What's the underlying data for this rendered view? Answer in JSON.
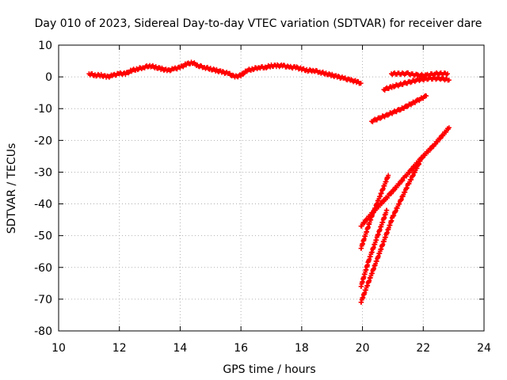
{
  "chart_data": {
    "type": "scatter",
    "title": "Day 010 of 2023, Sidereal Day-to-day VTEC variation (SDTVAR) for receiver dare",
    "xlabel": "GPS time / hours",
    "ylabel": "SDTVAR / TECUs",
    "xlim": [
      10,
      24
    ],
    "ylim": [
      -80,
      10
    ],
    "x_ticks": [
      10,
      12,
      14,
      16,
      18,
      20,
      22,
      24
    ],
    "y_ticks": [
      10,
      0,
      -10,
      -20,
      -30,
      -40,
      -50,
      -60,
      -70,
      -80
    ],
    "grid": true,
    "legend": "none",
    "marker": "plus",
    "color": "#ff0000",
    "series": [
      {
        "values": [
          [
            11.0,
            1.0
          ],
          [
            11.2,
            0.5
          ],
          [
            11.4,
            0.5
          ],
          [
            11.6,
            0.0
          ],
          [
            11.8,
            0.5
          ],
          [
            12.0,
            1.0
          ],
          [
            12.2,
            1.0
          ],
          [
            12.4,
            2.0
          ],
          [
            12.6,
            2.5
          ],
          [
            12.8,
            3.0
          ],
          [
            13.0,
            3.5
          ],
          [
            13.2,
            3.0
          ],
          [
            13.4,
            2.5
          ],
          [
            13.6,
            2.0
          ],
          [
            13.8,
            2.5
          ],
          [
            14.0,
            3.0
          ],
          [
            14.2,
            4.0
          ],
          [
            14.4,
            4.5
          ],
          [
            14.6,
            3.5
          ],
          [
            14.8,
            3.0
          ],
          [
            15.0,
            2.5
          ],
          [
            15.2,
            2.0
          ],
          [
            15.4,
            1.5
          ],
          [
            15.6,
            1.0
          ],
          [
            15.8,
            0.0
          ],
          [
            16.0,
            0.5
          ],
          [
            16.2,
            2.0
          ],
          [
            16.4,
            2.5
          ],
          [
            16.6,
            3.0
          ],
          [
            16.8,
            3.0
          ],
          [
            17.0,
            3.5
          ],
          [
            17.2,
            3.5
          ],
          [
            17.4,
            3.5
          ],
          [
            17.6,
            3.0
          ],
          [
            17.8,
            3.0
          ],
          [
            18.0,
            2.5
          ],
          [
            18.2,
            2.0
          ],
          [
            18.4,
            2.0
          ],
          [
            18.6,
            1.5
          ],
          [
            18.8,
            1.0
          ],
          [
            19.0,
            0.5
          ],
          [
            19.2,
            0.0
          ],
          [
            19.4,
            -0.5
          ],
          [
            19.6,
            -1.0
          ],
          [
            19.8,
            -1.5
          ],
          [
            19.95,
            -2.0
          ]
        ]
      },
      {
        "values": [
          [
            20.95,
            1.0
          ],
          [
            21.2,
            1.0
          ],
          [
            21.5,
            1.0
          ],
          [
            21.8,
            0.5
          ],
          [
            22.1,
            0.5
          ],
          [
            22.4,
            1.0
          ],
          [
            22.8,
            1.0
          ]
        ]
      },
      {
        "values": [
          [
            20.7,
            -4.0
          ],
          [
            21.0,
            -3.0
          ],
          [
            21.4,
            -2.0
          ],
          [
            21.8,
            -1.0
          ],
          [
            22.2,
            -0.5
          ],
          [
            22.6,
            -0.5
          ],
          [
            22.85,
            -1.0
          ]
        ]
      },
      {
        "values": [
          [
            20.3,
            -14.0
          ],
          [
            20.8,
            -12.0
          ],
          [
            21.3,
            -10.0
          ],
          [
            21.8,
            -7.5
          ],
          [
            22.1,
            -6.0
          ]
        ]
      },
      {
        "values": [
          [
            19.95,
            -47.0
          ],
          [
            20.4,
            -42.0
          ],
          [
            20.9,
            -37.0
          ],
          [
            21.4,
            -31.5
          ],
          [
            21.9,
            -26.0
          ],
          [
            22.4,
            -21.0
          ],
          [
            22.85,
            -16.0
          ]
        ]
      },
      {
        "values": [
          [
            19.95,
            -71.0
          ],
          [
            20.5,
            -57.0
          ],
          [
            21.0,
            -44.0
          ],
          [
            21.5,
            -34.0
          ],
          [
            21.9,
            -26.5
          ]
        ]
      },
      {
        "values": [
          [
            19.95,
            -66.0
          ],
          [
            20.2,
            -58.0
          ],
          [
            20.5,
            -50.0
          ],
          [
            20.8,
            -42.0
          ]
        ]
      },
      {
        "values": [
          [
            19.95,
            -54.0
          ],
          [
            20.3,
            -44.0
          ],
          [
            20.6,
            -37.0
          ],
          [
            20.85,
            -31.0
          ]
        ]
      }
    ]
  }
}
